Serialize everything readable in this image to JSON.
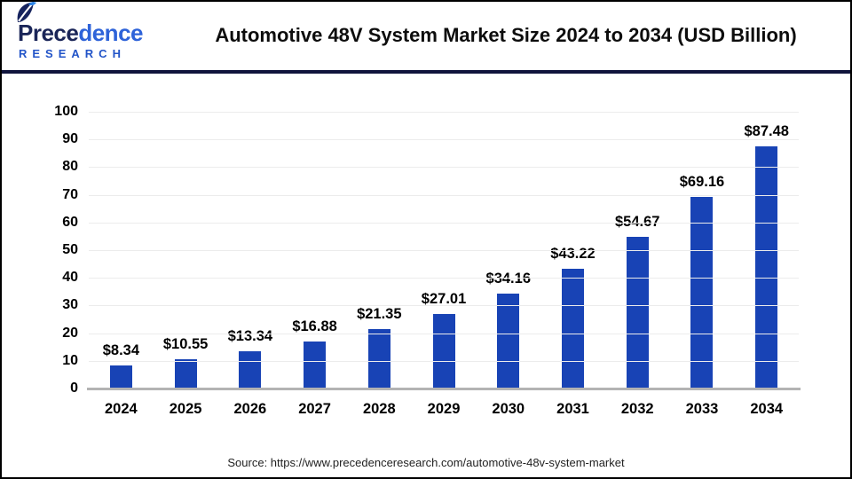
{
  "header": {
    "logo": {
      "brand_first": "Prece",
      "brand_second": "dence",
      "research": "RESEARCH",
      "brand_dark_color": "#1A2558",
      "brand_blue_color": "#2E63D9",
      "research_color": "#2254C8",
      "leaf_dark_color": "#16235E",
      "leaf_accent_color": "#2E86E8"
    },
    "title": "Automotive 48V System Market Size 2024 to 2034 (USD Billion)"
  },
  "chart_data": {
    "type": "bar",
    "title": "Automotive 48V System Market Size 2024 to 2034 (USD Billion)",
    "unit": "USD Billion",
    "categories": [
      "2024",
      "2025",
      "2026",
      "2027",
      "2028",
      "2029",
      "2030",
      "2031",
      "2032",
      "2033",
      "2034"
    ],
    "values": [
      8.34,
      10.55,
      13.34,
      16.88,
      21.35,
      27.01,
      34.16,
      43.22,
      54.67,
      69.16,
      87.48
    ],
    "bar_labels": [
      "$8.34",
      "$10.55",
      "$13.34",
      "$16.88",
      "$21.35",
      "$27.01",
      "$34.16",
      "$43.22",
      "$54.67",
      "$69.16",
      "$87.48"
    ],
    "ylim": [
      0,
      100
    ],
    "yticks": [
      0,
      10,
      20,
      30,
      40,
      50,
      60,
      70,
      80,
      90,
      100
    ],
    "grid": true,
    "legend": false,
    "bar_color": "#1843B5",
    "gridline_color": "#ECECEC",
    "baseline_color": "#B3B3B3"
  },
  "footer": {
    "source": "Source: https://www.precedenceresearch.com/automotive-48v-system-market"
  },
  "theme": {
    "divider_color": "#10143C",
    "border_color": "#000000",
    "background": "#FFFFFF"
  }
}
